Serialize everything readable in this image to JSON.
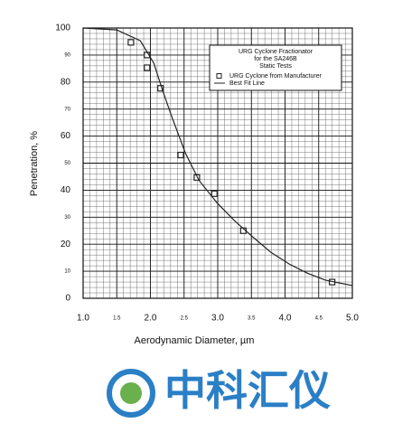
{
  "chart_data": {
    "type": "scatter",
    "x_label": "Aerodynamic Diameter, µm",
    "y_label": "Penetration, %",
    "legend_title": [
      "URG Cyclone Fractionator",
      "for the SA246B",
      "Static Tests"
    ],
    "xlim": [
      1,
      5
    ],
    "ylim": [
      0,
      100
    ],
    "xticks": [
      {
        "value": 1,
        "label": "1.0"
      },
      1.5,
      {
        "value": 2,
        "label": "2.0"
      },
      2.5,
      {
        "value": 3,
        "label": "3.0"
      },
      3.5,
      {
        "value": 4,
        "label": "4.0"
      },
      4.5,
      {
        "value": 5,
        "label": "5.0"
      }
    ],
    "yticks": [
      0,
      10,
      20,
      30,
      40,
      50,
      60,
      70,
      80,
      90,
      100
    ],
    "grid": true,
    "series": [
      {
        "name": "URG Cyclone from Manufacturer",
        "type": "marker",
        "color": "#222",
        "x": [
          1.71,
          1.95,
          1.95,
          2.15,
          2.45,
          2.69,
          2.95,
          3.38,
          4.7
        ],
        "values": [
          94.7,
          90,
          85.3,
          77.7,
          53,
          44.7,
          38.7,
          25,
          6
        ]
      },
      {
        "name": "Best Fit Line",
        "type": "line",
        "color": "#222",
        "x": [
          1,
          1.5,
          1.85,
          2.05,
          2.18,
          2.32,
          2.52,
          2.72,
          2.99,
          3.25,
          3.52,
          3.79,
          4.06,
          4.33,
          4.6,
          5
        ],
        "values": [
          100,
          99.3,
          95.3,
          87,
          77,
          67,
          53.7,
          43.7,
          35.3,
          28.7,
          22.7,
          17,
          12.7,
          9.3,
          6.7,
          4.7
        ]
      }
    ]
  },
  "watermark": "中科汇仪"
}
